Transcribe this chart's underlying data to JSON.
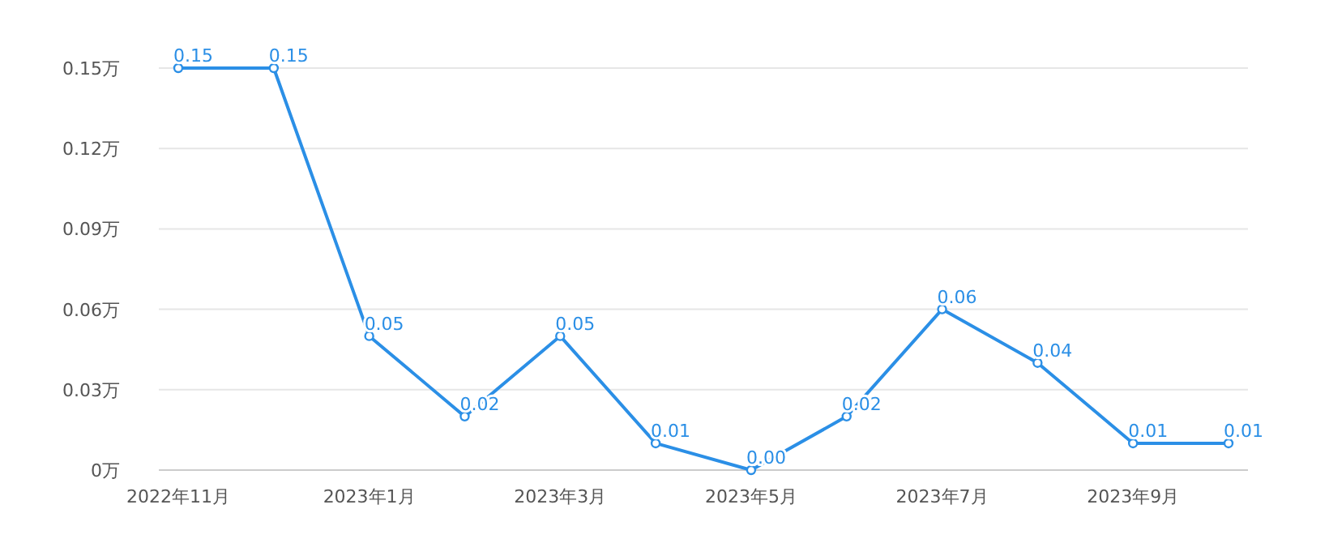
{
  "chart_data": {
    "type": "line",
    "categories": [
      "2022年11月",
      null,
      "2023年1月",
      null,
      "2023年3月",
      null,
      "2023年5月",
      null,
      "2023年7月",
      null,
      "2023年9月",
      null
    ],
    "series": [
      {
        "color": "#2b8fe6",
        "values": [
          0.15,
          0.15,
          0.05,
          0.02,
          0.05,
          0.01,
          0.0,
          0.02,
          0.06,
          0.04,
          0.01,
          0.01
        ],
        "value_labels": [
          "0.15",
          "0.15",
          "0.05",
          "0.02",
          "0.05",
          "0.01",
          "0.00",
          "0.02",
          "0.06",
          "0.04",
          "0.01",
          "0.01"
        ]
      }
    ],
    "ylim": [
      0,
      0.15
    ],
    "yticks": [
      {
        "value": 0,
        "label": "0万"
      },
      {
        "value": 0.03,
        "label": "0.03万"
      },
      {
        "value": 0.06,
        "label": "0.06万"
      },
      {
        "value": 0.09,
        "label": "0.09万"
      },
      {
        "value": 0.12,
        "label": "0.12万"
      },
      {
        "value": 0.15,
        "label": "0.15万"
      }
    ],
    "grid": "y",
    "marker": "circle",
    "line_style": "solid"
  }
}
